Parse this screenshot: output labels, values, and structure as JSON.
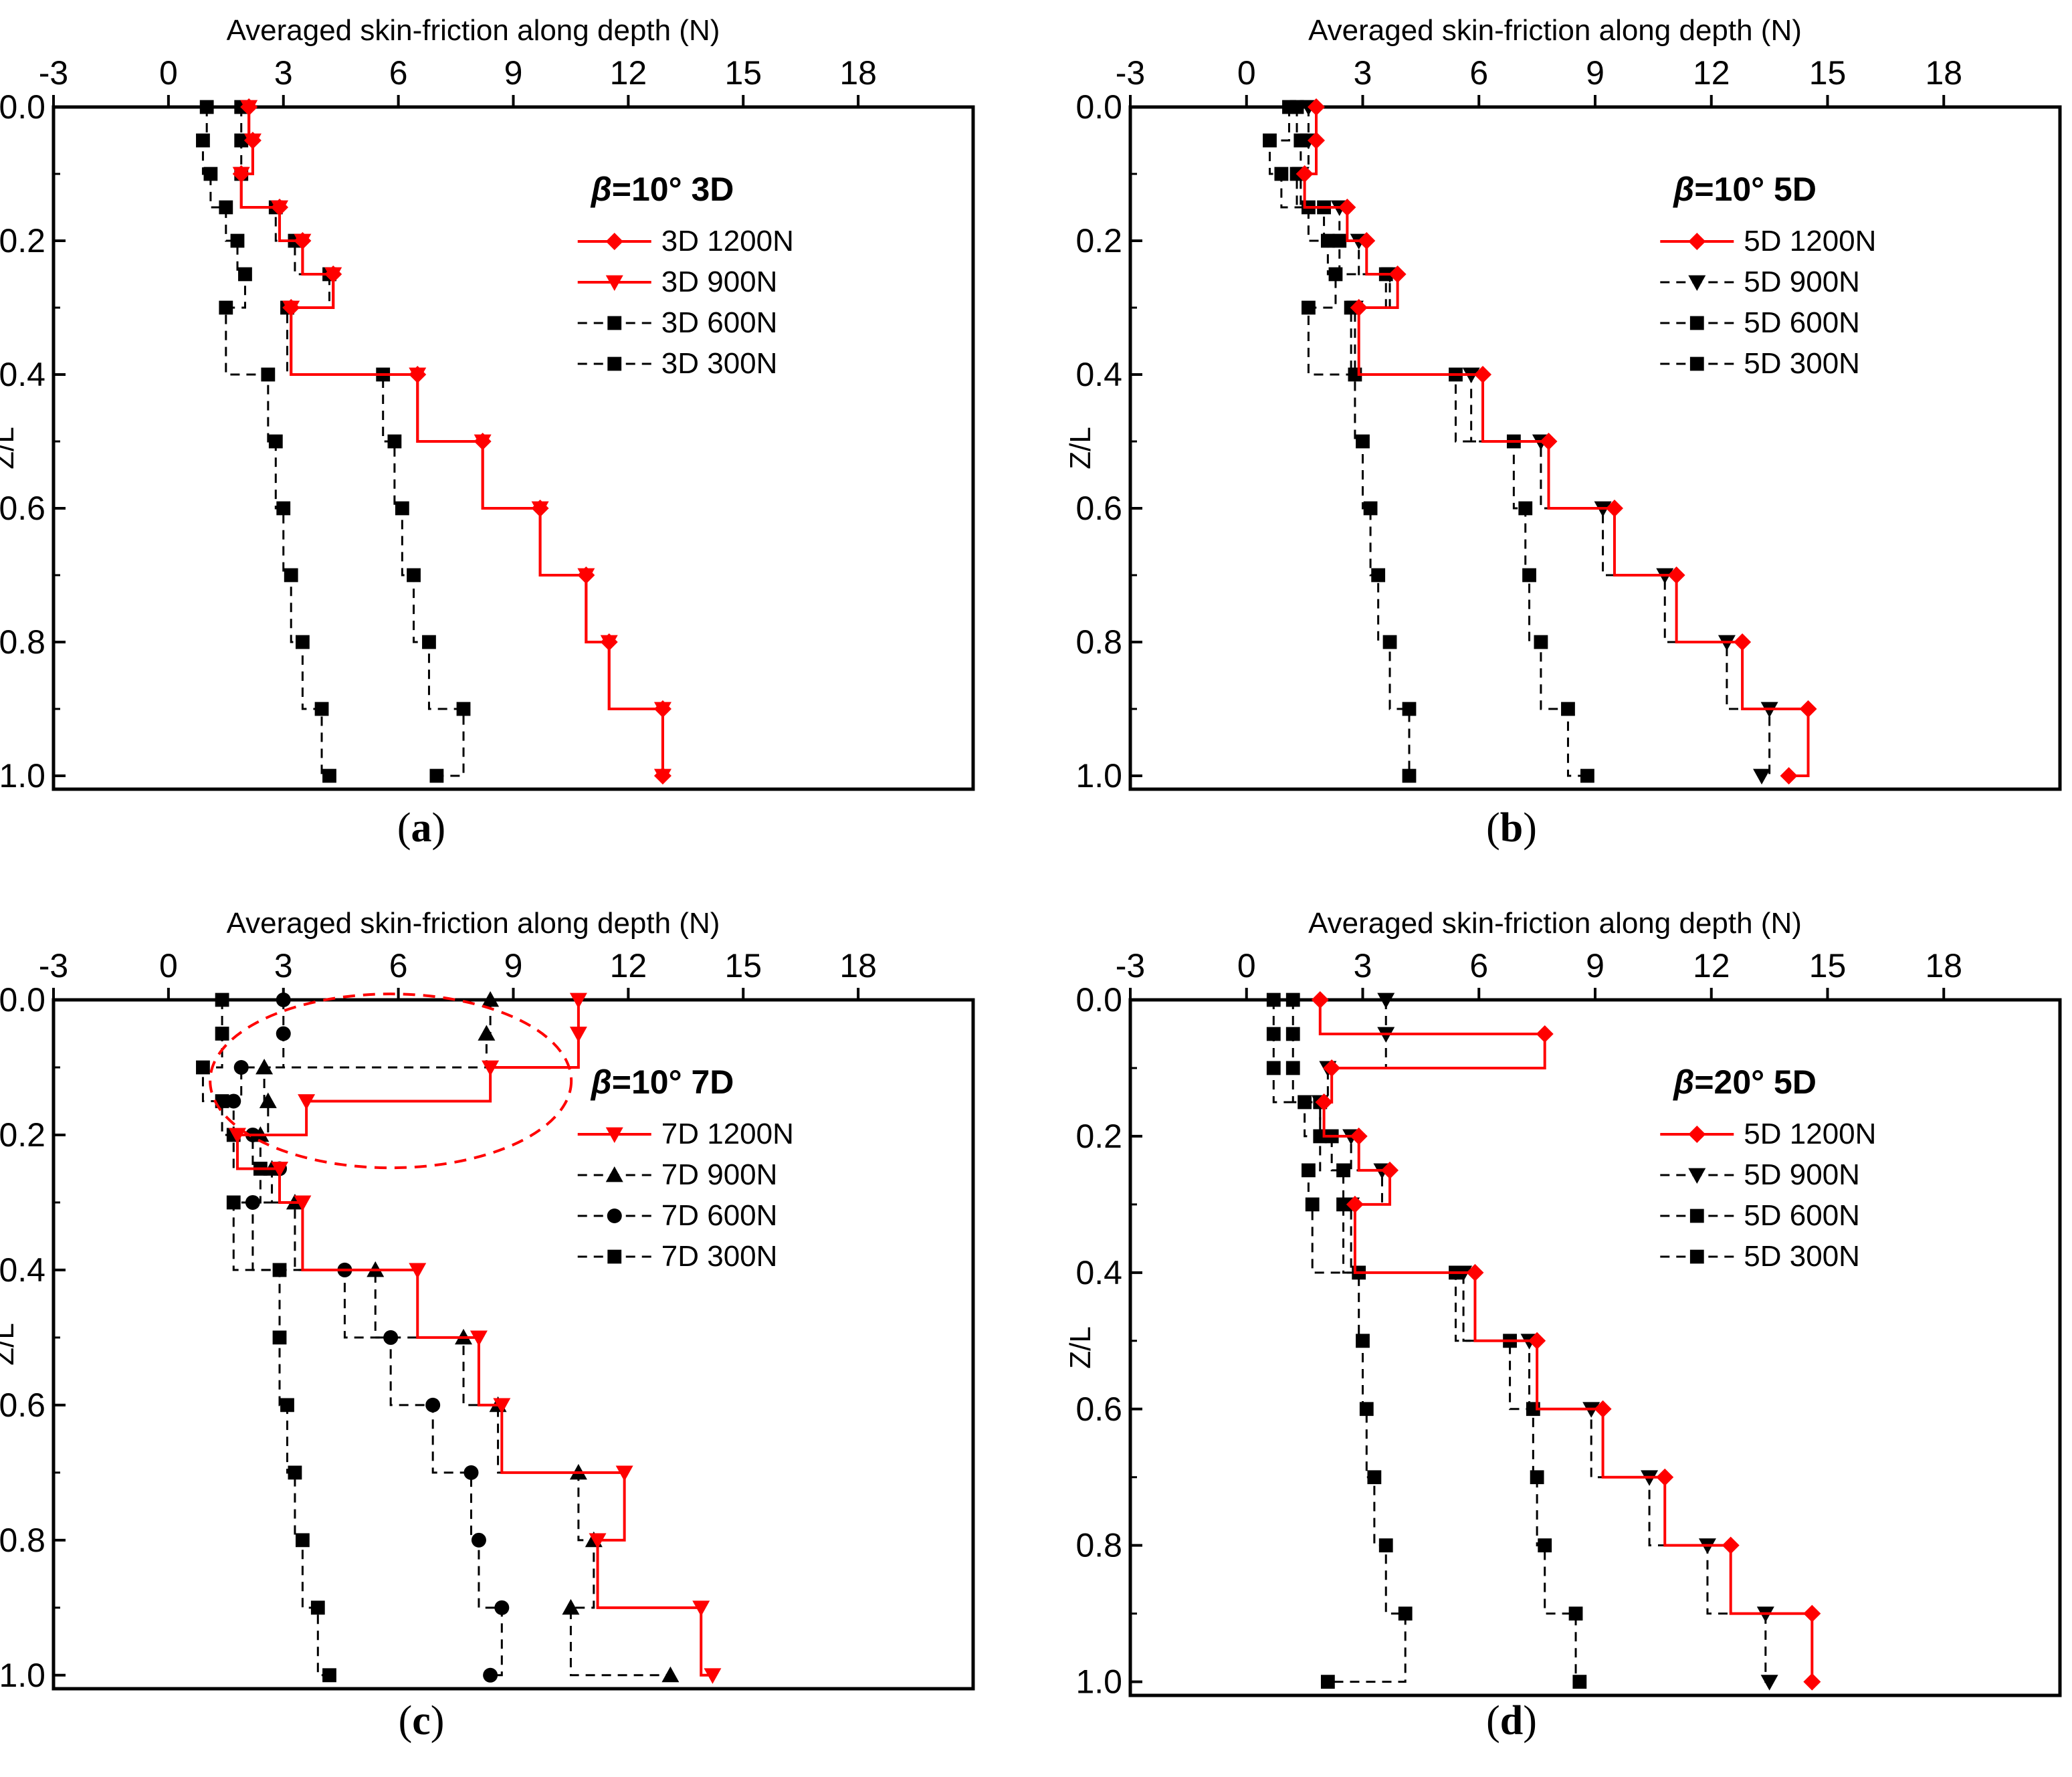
{
  "figure": {
    "captions": [
      "a",
      "b",
      "c",
      "d"
    ]
  },
  "chart_data": [
    {
      "type": "line",
      "panel": "a",
      "title": "β=10° 3D",
      "xlabel": "Averaged skin-friction along depth (N)",
      "ylabel": "Z/L",
      "xlim": [
        -3,
        21
      ],
      "ylim": [
        0,
        1.02
      ],
      "xticks": [
        -3,
        0,
        3,
        6,
        9,
        12,
        15,
        18
      ],
      "yticks": [
        "0.0",
        "0.2",
        "0.4",
        "0.6",
        "0.8",
        "1.0"
      ],
      "y": [
        0,
        0.05,
        0.1,
        0.15,
        0.2,
        0.25,
        0.3,
        0.4,
        0.5,
        0.6,
        0.7,
        0.8,
        0.9,
        1.0
      ],
      "series": [
        {
          "name": "3D 1200N",
          "color": "#ff0000",
          "marker": "diamond",
          "style": "solid",
          "x": [
            2.1,
            2.2,
            1.9,
            2.9,
            3.5,
            4.3,
            3.2,
            6.5,
            8.2,
            9.7,
            10.9,
            11.5,
            12.9,
            12.9
          ]
        },
        {
          "name": "3D 900N",
          "color": "#ff0000",
          "marker": "triangle-down",
          "style": "solid",
          "x": [
            2.1,
            2.2,
            1.9,
            2.9,
            3.5,
            4.3,
            3.2,
            6.5,
            8.2,
            9.7,
            10.9,
            11.5,
            12.9,
            12.9
          ]
        },
        {
          "name": "3D 600N",
          "color": "#000000",
          "marker": "square",
          "style": "dashed",
          "x": [
            1.9,
            1.9,
            1.9,
            2.8,
            3.3,
            4.2,
            3.1,
            5.6,
            5.9,
            6.1,
            6.4,
            6.8,
            7.7,
            7.0
          ]
        },
        {
          "name": "3D 300N",
          "color": "#000000",
          "marker": "square",
          "style": "dashed",
          "x": [
            1.0,
            0.9,
            1.1,
            1.5,
            1.8,
            2.0,
            1.5,
            2.6,
            2.8,
            3.0,
            3.2,
            3.5,
            4.0,
            4.2
          ]
        }
      ]
    },
    {
      "type": "line",
      "panel": "b",
      "title": "β=10° 5D",
      "xlabel": "Averaged skin-friction along depth (N)",
      "ylabel": "Z/L",
      "xlim": [
        -3,
        21
      ],
      "ylim": [
        0,
        1.02
      ],
      "xticks": [
        -3,
        0,
        3,
        6,
        9,
        12,
        15,
        18
      ],
      "yticks": [
        "0.0",
        "0.2",
        "0.4",
        "0.6",
        "0.8",
        "1.0"
      ],
      "y": [
        0,
        0.05,
        0.1,
        0.15,
        0.2,
        0.25,
        0.3,
        0.4,
        0.5,
        0.6,
        0.7,
        0.8,
        0.9,
        1.0
      ],
      "series": [
        {
          "name": "5D 1200N",
          "color": "#ff0000",
          "marker": "diamond",
          "style": "solid",
          "x": [
            1.8,
            1.8,
            1.5,
            2.6,
            3.1,
            3.9,
            2.9,
            6.1,
            7.8,
            9.5,
            11.1,
            12.8,
            14.5,
            14.0
          ]
        },
        {
          "name": "5D 900N",
          "color": "#000000",
          "marker": "triangle-down",
          "style": "dashed",
          "x": [
            1.6,
            1.6,
            1.4,
            2.4,
            2.9,
            3.7,
            2.8,
            5.8,
            7.6,
            9.2,
            10.8,
            12.4,
            13.5,
            13.3
          ]
        },
        {
          "name": "5D 600N",
          "color": "#000000",
          "marker": "square",
          "style": "dashed",
          "x": [
            1.3,
            1.4,
            1.3,
            2.0,
            2.4,
            3.6,
            2.7,
            5.4,
            6.9,
            7.2,
            7.3,
            7.6,
            8.3,
            8.8
          ]
        },
        {
          "name": "5D 300N",
          "color": "#000000",
          "marker": "square",
          "style": "dashed",
          "x": [
            1.1,
            0.6,
            0.9,
            1.6,
            2.1,
            2.3,
            1.6,
            2.8,
            3.0,
            3.2,
            3.4,
            3.7,
            4.2,
            4.2
          ]
        }
      ]
    },
    {
      "type": "line",
      "panel": "c",
      "title": "β=10° 7D",
      "xlabel": "Averaged skin-friction along depth (N)",
      "ylabel": "Z/L",
      "xlim": [
        -3,
        21
      ],
      "ylim": [
        0,
        1.02
      ],
      "xticks": [
        -3,
        0,
        3,
        6,
        9,
        12,
        15,
        18
      ],
      "yticks": [
        "0.0",
        "0.2",
        "0.4",
        "0.6",
        "0.8",
        "1.0"
      ],
      "y": [
        0,
        0.05,
        0.1,
        0.15,
        0.2,
        0.25,
        0.3,
        0.4,
        0.5,
        0.6,
        0.7,
        0.8,
        0.9,
        1.0
      ],
      "series": [
        {
          "name": "7D 1200N",
          "color": "#ff0000",
          "marker": "triangle-down",
          "style": "solid",
          "x": [
            10.7,
            10.7,
            8.4,
            3.6,
            1.8,
            2.9,
            3.5,
            6.5,
            8.1,
            8.7,
            11.9,
            11.2,
            13.9,
            14.2
          ]
        },
        {
          "name": "7D 900N",
          "color": "#000000",
          "marker": "triangle-up",
          "style": "dashed",
          "x": [
            8.4,
            8.3,
            2.5,
            2.6,
            2.4,
            2.7,
            3.3,
            5.4,
            7.7,
            8.6,
            10.7,
            11.1,
            10.5,
            13.1
          ]
        },
        {
          "name": "7D 600N",
          "color": "#000000",
          "marker": "circle",
          "style": "dashed",
          "x": [
            3.0,
            3.0,
            1.9,
            1.7,
            2.2,
            2.9,
            2.2,
            4.6,
            5.8,
            6.9,
            7.9,
            8.1,
            8.7,
            8.4
          ]
        },
        {
          "name": "7D 300N",
          "color": "#000000",
          "marker": "square",
          "style": "dashed",
          "x": [
            1.4,
            1.4,
            0.9,
            1.4,
            1.7,
            2.4,
            1.7,
            2.9,
            2.9,
            3.1,
            3.3,
            3.5,
            3.9,
            4.2
          ]
        }
      ],
      "annotation": "dashed red ellipse around Z/L 0.0–0.25 upper region"
    },
    {
      "type": "line",
      "panel": "d",
      "title": "β=20° 5D",
      "xlabel": "Averaged skin-friction along depth (N)",
      "ylabel": "Z/L",
      "xlim": [
        -3,
        21
      ],
      "ylim": [
        0,
        1.02
      ],
      "xticks": [
        -3,
        0,
        3,
        6,
        9,
        12,
        15,
        18
      ],
      "yticks": [
        "0.0",
        "0.2",
        "0.4",
        "0.6",
        "0.8",
        "1.0"
      ],
      "y": [
        0,
        0.05,
        0.1,
        0.15,
        0.2,
        0.25,
        0.3,
        0.4,
        0.5,
        0.6,
        0.7,
        0.8,
        0.9,
        1.0
      ],
      "series": [
        {
          "name": "5D 1200N",
          "color": "#ff0000",
          "marker": "diamond",
          "style": "solid",
          "x": [
            1.9,
            7.7,
            2.2,
            2.0,
            2.9,
            3.7,
            2.8,
            5.9,
            7.5,
            9.2,
            10.8,
            12.5,
            14.6,
            14.6
          ]
        },
        {
          "name": "5D 900N",
          "color": "#000000",
          "marker": "triangle-down",
          "style": "dashed",
          "x": [
            3.6,
            3.6,
            2.1,
            1.9,
            2.7,
            3.5,
            2.7,
            5.6,
            7.3,
            8.9,
            10.4,
            11.9,
            13.4,
            13.5
          ]
        },
        {
          "name": "5D 600N",
          "color": "#000000",
          "marker": "square",
          "style": "dashed",
          "x": [
            1.2,
            1.2,
            1.2,
            1.9,
            2.2,
            2.5,
            2.5,
            5.4,
            6.8,
            7.4,
            7.5,
            7.7,
            8.5,
            8.6
          ]
        },
        {
          "name": "5D 300N",
          "color": "#000000",
          "marker": "square",
          "style": "dashed",
          "x": [
            0.7,
            0.7,
            0.7,
            1.5,
            1.9,
            1.6,
            1.7,
            2.9,
            3.0,
            3.1,
            3.3,
            3.6,
            4.1,
            2.1
          ]
        }
      ]
    }
  ]
}
